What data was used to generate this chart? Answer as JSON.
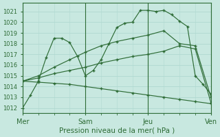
{
  "title": "Pression niveau de la mer( hPa )",
  "ylabel_ticks": [
    1012,
    1013,
    1014,
    1015,
    1016,
    1017,
    1018,
    1019,
    1020,
    1021
  ],
  "xlim": [
    0,
    72
  ],
  "ylim": [
    1011.5,
    1021.8
  ],
  "xtick_positions": [
    0,
    24,
    48,
    72
  ],
  "xtick_labels": [
    "Mer",
    "Sam",
    "Jeu",
    "Ven"
  ],
  "bg_color": "#c8e8e0",
  "grid_color": "#b0d8d0",
  "line_color": "#2d6b35",
  "series": [
    {
      "x": [
        0,
        6,
        12,
        18,
        24,
        30,
        36,
        42,
        48,
        54,
        60,
        66,
        72
      ],
      "y": [
        1014.5,
        1014.4,
        1014.3,
        1014.2,
        1014.0,
        1013.8,
        1013.6,
        1013.4,
        1013.2,
        1013.0,
        1012.8,
        1012.6,
        1012.4
      ]
    },
    {
      "x": [
        0,
        6,
        12,
        18,
        24,
        30,
        36,
        42,
        48,
        54,
        60,
        66,
        72
      ],
      "y": [
        1014.5,
        1014.8,
        1015.2,
        1015.5,
        1015.8,
        1016.2,
        1016.5,
        1016.8,
        1017.0,
        1017.3,
        1017.8,
        1017.5,
        1012.5
      ]
    },
    {
      "x": [
        0,
        6,
        12,
        18,
        24,
        30,
        36,
        42,
        48,
        54,
        60,
        66,
        72
      ],
      "y": [
        1014.5,
        1015.0,
        1015.8,
        1016.5,
        1017.2,
        1017.8,
        1018.2,
        1018.5,
        1018.8,
        1019.2,
        1018.0,
        1017.8,
        1013.0
      ]
    },
    {
      "x": [
        0,
        3,
        6,
        9,
        12,
        15,
        18,
        21,
        24,
        27,
        30,
        33,
        36,
        39,
        42,
        45,
        48,
        51,
        54,
        57,
        60,
        63,
        66,
        69,
        72
      ],
      "y": [
        1012.0,
        1013.2,
        1014.5,
        1016.7,
        1018.5,
        1018.5,
        1018.1,
        1016.8,
        1015.0,
        1015.5,
        1016.5,
        1018.0,
        1019.5,
        1019.9,
        1020.0,
        1021.1,
        1021.1,
        1021.0,
        1021.1,
        1020.7,
        1020.1,
        1019.6,
        1015.0,
        1014.2,
        1013.3
      ]
    }
  ]
}
